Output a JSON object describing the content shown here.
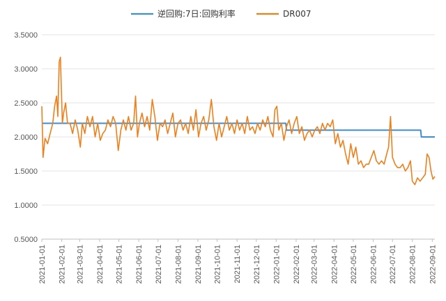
{
  "chart_data": {
    "type": "line",
    "title": "",
    "xlabel": "",
    "ylabel": "",
    "ylim": [
      0.5,
      3.5
    ],
    "yticks": [
      "0.5000",
      "1.0000",
      "1.5000",
      "2.0000",
      "2.5000",
      "3.0000",
      "3.5000"
    ],
    "x_ticks": [
      "2021-01-01",
      "2021-02-01",
      "2021-03-01",
      "2021-04-01",
      "2021-05-01",
      "2021-06-01",
      "2021-07-01",
      "2021-08-01",
      "2021-09-01",
      "2021-10-01",
      "2021-11-01",
      "2021-12-01",
      "2022-01-01",
      "2022-02-01",
      "2022-03-01",
      "2022-04-01",
      "2022-05-01",
      "2022-06-01",
      "2022-07-01",
      "2022-08-01",
      "2022-09-01"
    ],
    "xlim": [
      "2021-01-01",
      "2022-09-05"
    ],
    "grid": "horizontal",
    "legend_position": "top",
    "series": [
      {
        "name": "逆回购:7日:回购利率",
        "color": "#3d8fd1",
        "points": [
          [
            "2021-01-01",
            2.2
          ],
          [
            "2022-01-16",
            2.2
          ],
          [
            "2022-01-17",
            2.1
          ],
          [
            "2022-08-14",
            2.1
          ],
          [
            "2022-08-15",
            2.0
          ],
          [
            "2022-09-05",
            2.0
          ]
        ]
      },
      {
        "name": "DR007",
        "color": "#ef7f1a",
        "points": [
          [
            "2021-01-01",
            2.45
          ],
          [
            "2021-01-03",
            1.7
          ],
          [
            "2021-01-06",
            1.98
          ],
          [
            "2021-01-10",
            1.9
          ],
          [
            "2021-01-14",
            2.05
          ],
          [
            "2021-01-18",
            2.2
          ],
          [
            "2021-01-21",
            2.45
          ],
          [
            "2021-01-24",
            2.6
          ],
          [
            "2021-01-26",
            2.3
          ],
          [
            "2021-01-28",
            3.1
          ],
          [
            "2021-01-30",
            3.17
          ],
          [
            "2021-02-02",
            2.2
          ],
          [
            "2021-02-04",
            2.35
          ],
          [
            "2021-02-07",
            2.5
          ],
          [
            "2021-02-10",
            2.2
          ],
          [
            "2021-02-14",
            2.2
          ],
          [
            "2021-02-18",
            2.05
          ],
          [
            "2021-02-22",
            2.25
          ],
          [
            "2021-02-26",
            2.1
          ],
          [
            "2021-03-02",
            1.85
          ],
          [
            "2021-03-05",
            2.2
          ],
          [
            "2021-03-09",
            2.05
          ],
          [
            "2021-03-13",
            2.3
          ],
          [
            "2021-03-17",
            2.15
          ],
          [
            "2021-03-21",
            2.3
          ],
          [
            "2021-03-25",
            2.0
          ],
          [
            "2021-03-29",
            2.2
          ],
          [
            "2021-04-02",
            1.95
          ],
          [
            "2021-04-06",
            2.05
          ],
          [
            "2021-04-10",
            2.1
          ],
          [
            "2021-04-14",
            2.25
          ],
          [
            "2021-04-18",
            2.15
          ],
          [
            "2021-04-22",
            2.3
          ],
          [
            "2021-04-26",
            2.2
          ],
          [
            "2021-04-30",
            1.8
          ],
          [
            "2021-05-04",
            2.1
          ],
          [
            "2021-05-08",
            2.25
          ],
          [
            "2021-05-12",
            2.1
          ],
          [
            "2021-05-16",
            2.3
          ],
          [
            "2021-05-20",
            2.1
          ],
          [
            "2021-05-24",
            2.2
          ],
          [
            "2021-05-27",
            2.6
          ],
          [
            "2021-05-30",
            2.0
          ],
          [
            "2021-06-02",
            2.2
          ],
          [
            "2021-06-06",
            2.35
          ],
          [
            "2021-06-10",
            2.15
          ],
          [
            "2021-06-14",
            2.3
          ],
          [
            "2021-06-18",
            2.1
          ],
          [
            "2021-06-22",
            2.55
          ],
          [
            "2021-06-26",
            2.3
          ],
          [
            "2021-06-30",
            1.95
          ],
          [
            "2021-07-04",
            2.2
          ],
          [
            "2021-07-08",
            2.15
          ],
          [
            "2021-07-12",
            2.25
          ],
          [
            "2021-07-16",
            2.05
          ],
          [
            "2021-07-20",
            2.2
          ],
          [
            "2021-07-24",
            2.35
          ],
          [
            "2021-07-28",
            2.0
          ],
          [
            "2021-08-01",
            2.2
          ],
          [
            "2021-08-05",
            2.25
          ],
          [
            "2021-08-09",
            2.1
          ],
          [
            "2021-08-13",
            2.2
          ],
          [
            "2021-08-17",
            2.05
          ],
          [
            "2021-08-21",
            2.3
          ],
          [
            "2021-08-25",
            2.1
          ],
          [
            "2021-08-29",
            2.4
          ],
          [
            "2021-09-02",
            2.0
          ],
          [
            "2021-09-06",
            2.2
          ],
          [
            "2021-09-10",
            2.3
          ],
          [
            "2021-09-14",
            2.1
          ],
          [
            "2021-09-18",
            2.25
          ],
          [
            "2021-09-22",
            2.55
          ],
          [
            "2021-09-26",
            2.15
          ],
          [
            "2021-09-30",
            1.95
          ],
          [
            "2021-10-04",
            2.2
          ],
          [
            "2021-10-08",
            2.0
          ],
          [
            "2021-10-12",
            2.15
          ],
          [
            "2021-10-16",
            2.3
          ],
          [
            "2021-10-20",
            2.1
          ],
          [
            "2021-10-24",
            2.2
          ],
          [
            "2021-10-28",
            2.05
          ],
          [
            "2021-11-01",
            2.25
          ],
          [
            "2021-11-05",
            2.1
          ],
          [
            "2021-11-09",
            2.2
          ],
          [
            "2021-11-13",
            2.05
          ],
          [
            "2021-11-17",
            2.3
          ],
          [
            "2021-11-21",
            2.1
          ],
          [
            "2021-11-25",
            2.15
          ],
          [
            "2021-11-29",
            2.05
          ],
          [
            "2021-12-03",
            2.2
          ],
          [
            "2021-12-07",
            2.1
          ],
          [
            "2021-12-11",
            2.25
          ],
          [
            "2021-12-15",
            2.15
          ],
          [
            "2021-12-19",
            2.3
          ],
          [
            "2021-12-23",
            2.1
          ],
          [
            "2021-12-27",
            2.0
          ],
          [
            "2021-12-30",
            2.4
          ],
          [
            "2022-01-02",
            2.45
          ],
          [
            "2022-01-05",
            2.1
          ],
          [
            "2022-01-09",
            2.2
          ],
          [
            "2022-01-13",
            1.95
          ],
          [
            "2022-01-17",
            2.15
          ],
          [
            "2022-01-21",
            2.25
          ],
          [
            "2022-01-25",
            2.05
          ],
          [
            "2022-01-29",
            2.2
          ],
          [
            "2022-02-02",
            2.3
          ],
          [
            "2022-02-06",
            2.05
          ],
          [
            "2022-02-10",
            2.15
          ],
          [
            "2022-02-14",
            1.95
          ],
          [
            "2022-02-18",
            2.05
          ],
          [
            "2022-02-22",
            2.1
          ],
          [
            "2022-02-26",
            2.0
          ],
          [
            "2022-03-02",
            2.1
          ],
          [
            "2022-03-06",
            2.15
          ],
          [
            "2022-03-10",
            2.05
          ],
          [
            "2022-03-14",
            2.2
          ],
          [
            "2022-03-18",
            2.1
          ],
          [
            "2022-03-22",
            2.2
          ],
          [
            "2022-03-26",
            2.15
          ],
          [
            "2022-03-30",
            2.25
          ],
          [
            "2022-04-03",
            1.9
          ],
          [
            "2022-04-07",
            2.05
          ],
          [
            "2022-04-11",
            1.85
          ],
          [
            "2022-04-15",
            1.95
          ],
          [
            "2022-04-19",
            1.75
          ],
          [
            "2022-04-23",
            1.6
          ],
          [
            "2022-04-27",
            1.9
          ],
          [
            "2022-05-01",
            1.7
          ],
          [
            "2022-05-05",
            1.85
          ],
          [
            "2022-05-09",
            1.6
          ],
          [
            "2022-05-13",
            1.65
          ],
          [
            "2022-05-17",
            1.55
          ],
          [
            "2022-05-21",
            1.6
          ],
          [
            "2022-05-25",
            1.6
          ],
          [
            "2022-05-29",
            1.7
          ],
          [
            "2022-06-02",
            1.8
          ],
          [
            "2022-06-06",
            1.65
          ],
          [
            "2022-06-10",
            1.6
          ],
          [
            "2022-06-14",
            1.65
          ],
          [
            "2022-06-18",
            1.6
          ],
          [
            "2022-06-22",
            1.75
          ],
          [
            "2022-06-25",
            1.85
          ],
          [
            "2022-06-28",
            2.3
          ],
          [
            "2022-07-01",
            1.7
          ],
          [
            "2022-07-05",
            1.6
          ],
          [
            "2022-07-09",
            1.55
          ],
          [
            "2022-07-13",
            1.55
          ],
          [
            "2022-07-17",
            1.6
          ],
          [
            "2022-07-21",
            1.5
          ],
          [
            "2022-07-25",
            1.55
          ],
          [
            "2022-07-29",
            1.65
          ],
          [
            "2022-08-01",
            1.35
          ],
          [
            "2022-08-05",
            1.3
          ],
          [
            "2022-08-09",
            1.4
          ],
          [
            "2022-08-13",
            1.35
          ],
          [
            "2022-08-17",
            1.4
          ],
          [
            "2022-08-21",
            1.45
          ],
          [
            "2022-08-24",
            1.75
          ],
          [
            "2022-08-27",
            1.7
          ],
          [
            "2022-08-30",
            1.5
          ],
          [
            "2022-09-02",
            1.38
          ],
          [
            "2022-09-05",
            1.42
          ]
        ]
      }
    ]
  }
}
